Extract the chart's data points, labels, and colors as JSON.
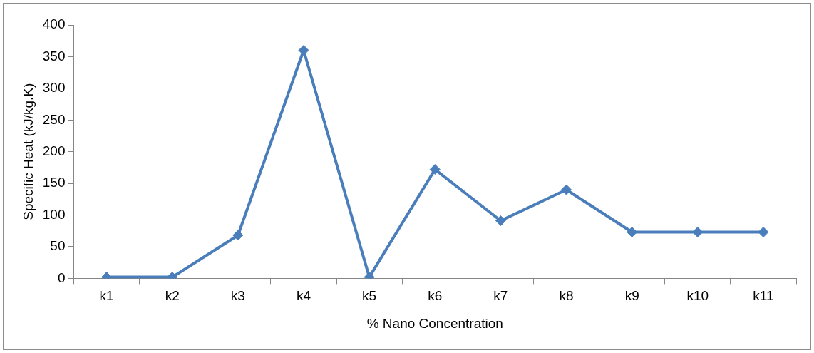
{
  "chart_data": {
    "type": "line",
    "xlabel": "% Nano Concentration",
    "ylabel": "Specific Heat (kJ/kg.K)",
    "categories": [
      "k1",
      "k2",
      "k3",
      "k4",
      "k5",
      "k6",
      "k7",
      "k8",
      "k9",
      "k10",
      "k11"
    ],
    "series": [
      {
        "color": "#4a7ebb",
        "values": [
          2,
          2,
          68,
          360,
          2,
          172,
          91,
          140,
          73,
          73,
          73
        ]
      }
    ],
    "ylim": [
      0,
      400
    ],
    "yticks": [
      0,
      50,
      100,
      150,
      200,
      250,
      300,
      350,
      400
    ],
    "grid": false,
    "legend": false,
    "marker": "diamond",
    "line_style": "solid"
  }
}
